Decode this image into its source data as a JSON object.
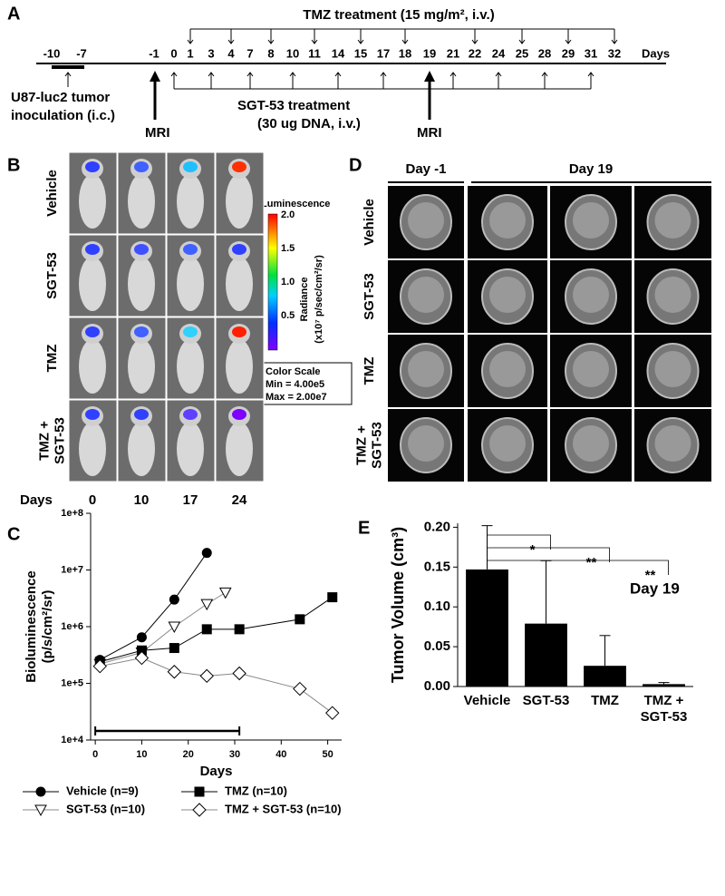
{
  "panel_labels": [
    "A",
    "B",
    "C",
    "D",
    "E"
  ],
  "timeline": {
    "tmz_title": "TMZ treatment (15 mg/m², i.v.)",
    "day_labels": [
      "-10",
      "-7",
      "-1",
      "0",
      "1",
      "3",
      "4",
      "7",
      "8",
      "10",
      "11",
      "14",
      "15",
      "17",
      "18",
      "19",
      "21",
      "22",
      "24",
      "25",
      "28",
      "29",
      "31",
      "32"
    ],
    "axis_label": "Days",
    "inoculation": [
      "U87-luc2 tumor",
      "inoculation (i.c.)"
    ],
    "sgt_title": [
      "SGT-53 treatment",
      "(30 ug DNA, i.v.)"
    ],
    "mri": [
      "MRI",
      "MRI"
    ]
  },
  "imaging": {
    "rows": [
      [
        "Vehicle"
      ],
      [
        "SGT-53"
      ],
      [
        "TMZ"
      ],
      [
        "TMZ +",
        "SGT-53"
      ]
    ],
    "days_label": "Days",
    "days": [
      "0",
      "10",
      "17",
      "24"
    ],
    "colorbar": {
      "title": "Luminescence",
      "ticks": [
        "2.0",
        "1.5",
        "1.0",
        "0.5"
      ],
      "label": [
        "Radiance",
        "(x10⁷ p/sec/cm²/sr)"
      ],
      "scale": [
        "Color Scale",
        "Min = 4.00e5",
        "Max = 2.00e7"
      ]
    }
  },
  "mri": {
    "headers": [
      "Day -1",
      "Day 19"
    ],
    "rows": [
      [
        "Vehicle"
      ],
      [
        "SGT-53"
      ],
      [
        "TMZ"
      ],
      [
        "TMZ +",
        "SGT-53"
      ]
    ]
  },
  "chart_data": [
    {
      "type": "line",
      "log_y": true,
      "x_label": "Days",
      "y_label": [
        "Bioluminescence",
        "(p/s/cm²/sr)"
      ],
      "xlim": [
        -1,
        53
      ],
      "xticks": [
        0,
        10,
        20,
        30,
        40,
        50
      ],
      "ylim": [
        10000,
        100000000
      ],
      "yticks": [
        {
          "value": 10000,
          "label": "1e+4"
        },
        {
          "value": 100000,
          "label": "1e+5"
        },
        {
          "value": 1000000,
          "label": "1e+6"
        },
        {
          "value": 10000000,
          "label": "1e+7"
        },
        {
          "value": 100000000,
          "label": "1e+8"
        }
      ],
      "treatment_bar": [
        0,
        31
      ],
      "series": [
        {
          "name": "Vehicle (n=9)",
          "marker": "circle",
          "color": "#000000",
          "marker_fill": "#000000",
          "x": [
            1,
            10,
            17,
            24
          ],
          "values": [
            260000,
            650000,
            3000000,
            20000000
          ]
        },
        {
          "name": "SGT-53 (n=10)",
          "marker": "triangle-down",
          "color": "#888888",
          "marker_fill": "#ffffff",
          "x": [
            1,
            10,
            17,
            24,
            28
          ],
          "values": [
            220000,
            350000,
            1000000,
            2500000,
            4000000
          ]
        },
        {
          "name": "TMZ (n=10)",
          "marker": "square",
          "color": "#000000",
          "marker_fill": "#000000",
          "x": [
            1,
            10,
            17,
            24,
            31,
            44,
            51
          ],
          "values": [
            240000,
            380000,
            420000,
            900000,
            900000,
            1350000,
            3300000
          ]
        },
        {
          "name": "TMZ + SGT-53 (n=10)",
          "marker": "diamond",
          "color": "#888888",
          "marker_fill": "#ffffff",
          "x": [
            1,
            10,
            17,
            24,
            31,
            44,
            51
          ],
          "values": [
            200000,
            280000,
            160000,
            135000,
            150000,
            80000,
            30000
          ]
        }
      ]
    },
    {
      "type": "bar",
      "y_label": "Tumor Volume (cm³)",
      "annotation": "Day 19",
      "categories": [
        [
          "Vehicle"
        ],
        [
          "SGT-53"
        ],
        [
          "TMZ"
        ],
        [
          "TMZ +",
          "SGT-53"
        ]
      ],
      "values": [
        0.147,
        0.079,
        0.026,
        0.003
      ],
      "errors": [
        0.055,
        0.079,
        0.038,
        0.002
      ],
      "significance": [
        "*",
        "**",
        "**"
      ],
      "color": "#000000",
      "ylim": [
        0,
        0.205
      ],
      "yticks": [
        {
          "value": 0,
          "label": "0.00"
        },
        {
          "value": 0.05,
          "label": "0.05"
        },
        {
          "value": 0.1,
          "label": "0.10"
        },
        {
          "value": 0.15,
          "label": "0.15"
        },
        {
          "value": 0.2,
          "label": "0.20"
        }
      ]
    }
  ]
}
